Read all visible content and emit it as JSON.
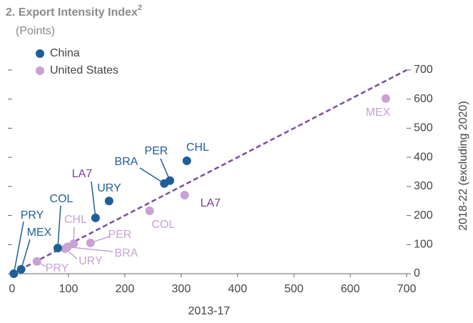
{
  "chart_data": {
    "type": "scatter",
    "title": "2. Export Intensity Index",
    "title_superscript": "2",
    "subtitle": "(Points)",
    "x_label": "2013-17",
    "y_label": "2018-22 (excluding 2020)",
    "xlim": [
      0,
      700
    ],
    "xticks": [
      0,
      100,
      200,
      300,
      400,
      500,
      600,
      700
    ],
    "ylim": [
      0,
      700
    ],
    "yticks": [
      0,
      100,
      200,
      300,
      400,
      500,
      600,
      700
    ],
    "reference_line_color": "#7a4fa0",
    "highlight_color": "#7a3c97",
    "series": [
      {
        "name": "China",
        "color": "#1f5f99",
        "highlight_index": 4,
        "labels": [
          "CHL",
          "PER",
          "BRA",
          "URY",
          "LA7",
          "COL",
          "MEX",
          "PRY"
        ],
        "x": [
          310,
          280,
          270,
          172,
          148,
          81,
          16,
          3
        ],
        "values": [
          388,
          320,
          310,
          250,
          192,
          88,
          15,
          0
        ]
      },
      {
        "name": "United States",
        "color": "#c8a2d4",
        "highlight_index": 1,
        "labels": [
          "MEX",
          "LA7",
          "COL",
          "PER",
          "CHL",
          "BRA",
          "URY",
          "PRY"
        ],
        "x": [
          663,
          306,
          244,
          139,
          109,
          98,
          94,
          44
        ],
        "values": [
          602,
          270,
          216,
          106,
          103,
          92,
          86,
          42
        ]
      }
    ]
  }
}
